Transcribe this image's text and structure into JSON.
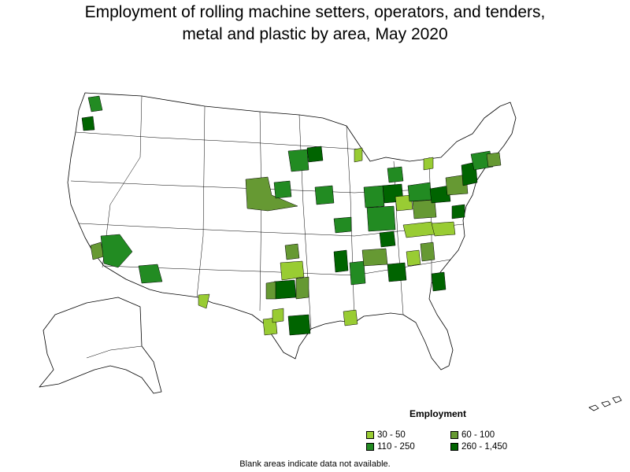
{
  "title": {
    "line1": "Employment of rolling machine setters, operators, and tenders,",
    "line2": "metal and plastic by area, May 2020"
  },
  "legend": {
    "title": "Employment",
    "bins": [
      {
        "label": "30 - 50",
        "color": "#99cc33"
      },
      {
        "label": "60 - 100",
        "color": "#669933"
      },
      {
        "label": "110 - 250",
        "color": "#228b22"
      },
      {
        "label": "260 - 1,450",
        "color": "#006400"
      }
    ]
  },
  "footnote": "Blank areas indicate data not available.",
  "colors": {
    "no_data": "#ffffff",
    "border": "#000000"
  }
}
